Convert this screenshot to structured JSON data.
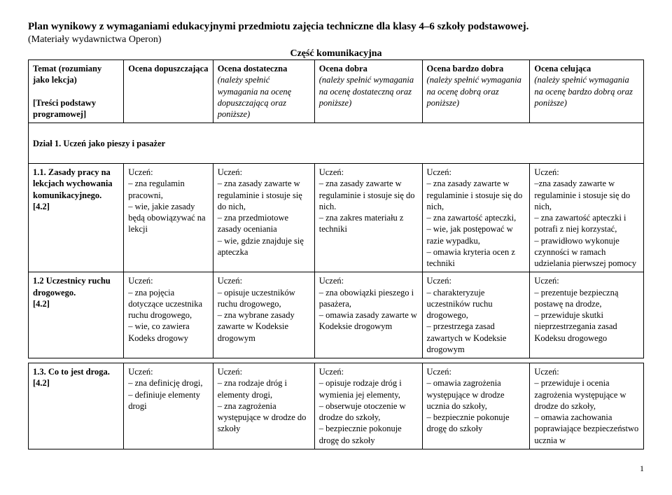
{
  "title": "Plan wynikowy z wymaganiami edukacyjnymi przedmiotu zajęcia techniczne dla klasy 4–6 szkoły podstawowej.",
  "subtitle": "(Materiały wydawnictwa Operon)",
  "part_title": "Część komunikacyjna",
  "col_width_pct": [
    15.5,
    14.5,
    16.5,
    17.5,
    17.5,
    18.5
  ],
  "headers": {
    "c0_l1": "Temat (rozumiany jako lekcja)",
    "c0_l2": "[Treści podstawy programowej]",
    "c1_l1": "Ocena dopuszczająca",
    "c2_l1": "Ocena dostateczna",
    "c2_l2": "(należy spełnić wymagania na ocenę dopuszczającą oraz poniższe)",
    "c3_l1": "Ocena dobra",
    "c3_l2": "(należy spełnić wymagania na ocenę dostateczną oraz poniższe)",
    "c4_l1": "Ocena bardzo dobra",
    "c4_l2": "(należy spełnić wymagania na ocenę dobrą oraz poniższe)",
    "c5_l1": "Ocena celująca",
    "c5_l2": "(należy spełnić wymagania na ocenę bardzo dobrą oraz poniższe)"
  },
  "section1_label": "Dział 1. Uczeń jako pieszy i pasażer",
  "uczen": "Uczeń:",
  "rows": {
    "r1": {
      "topic_l1": "1.1. Zasady pracy na lekcjach wychowania komunikacyjnego.",
      "topic_l2": "[4.2]",
      "c1": "– zna regulamin pracowni,\n– wie, jakie zasady będą obowiązywać na lekcji",
      "c2": "– zna zasady zawarte w regulaminie i stosuje się do nich,\n– zna przedmiotowe zasady oceniania\n– wie, gdzie znajduje się apteczka",
      "c3": "– zna zasady zawarte w regulaminie i stosuje się do nich.\n– zna zakres materiału z techniki",
      "c4": "– zna zasady zawarte w regulaminie i stosuje się do nich,\n– zna zawartość apteczki,\n– wie, jak postępować w razie wypadku,\n– omawia kryteria ocen z techniki",
      "c5": "–zna zasady zawarte w regulaminie i stosuje się do nich,\n– zna zawartość apteczki i potrafi z niej korzystać,\n– prawidłowo wykonuje czynności w ramach udzielania pierwszej pomocy"
    },
    "r2": {
      "topic_l1": "1.2 Uczestnicy ruchu drogowego.",
      "topic_l2": "[4.2]",
      "c1": "– zna pojęcia dotyczące uczestnika ruchu drogowego,\n– wie, co zawiera Kodeks drogowy",
      "c2": "– opisuje uczestników ruchu drogowego,\n– zna wybrane zasady zawarte w Kodeksie drogowym",
      "c3": "– zna obowiązki pieszego i pasażera,\n– omawia zasady zawarte w Kodeksie drogowym",
      "c4": "– charakteryzuje uczestników ruchu drogowego,\n– przestrzega zasad zawartych w Kodeksie drogowym",
      "c5": "– prezentuje bezpieczną postawę na drodze,\n– przewiduje skutki nieprzestrzegania zasad Kodeksu drogowego"
    },
    "r3": {
      "topic_l1": "1.3. Co to jest droga.",
      "topic_l2": "[4.2]",
      "c1": "– zna definicję drogi,\n– definiuje elementy drogi",
      "c2": "– zna rodzaje dróg i elementy drogi,\n– zna zagrożenia występujące w drodze do szkoły",
      "c3": "– opisuje rodzaje dróg i wymienia jej elementy,\n– obserwuje otoczenie w drodze do szkoły,\n– bezpiecznie pokonuje drogę do szkoły",
      "c4": "– omawia zagrożenia występujące w drodze ucznia do szkoły,\n– bezpiecznie pokonuje drogę do szkoły",
      "c5": "– przewiduje i ocenia zagrożenia występujące w drodze do szkoły,\n– omawia zachowania poprawiające bezpieczeństwo ucznia w"
    }
  },
  "page_number": "1"
}
